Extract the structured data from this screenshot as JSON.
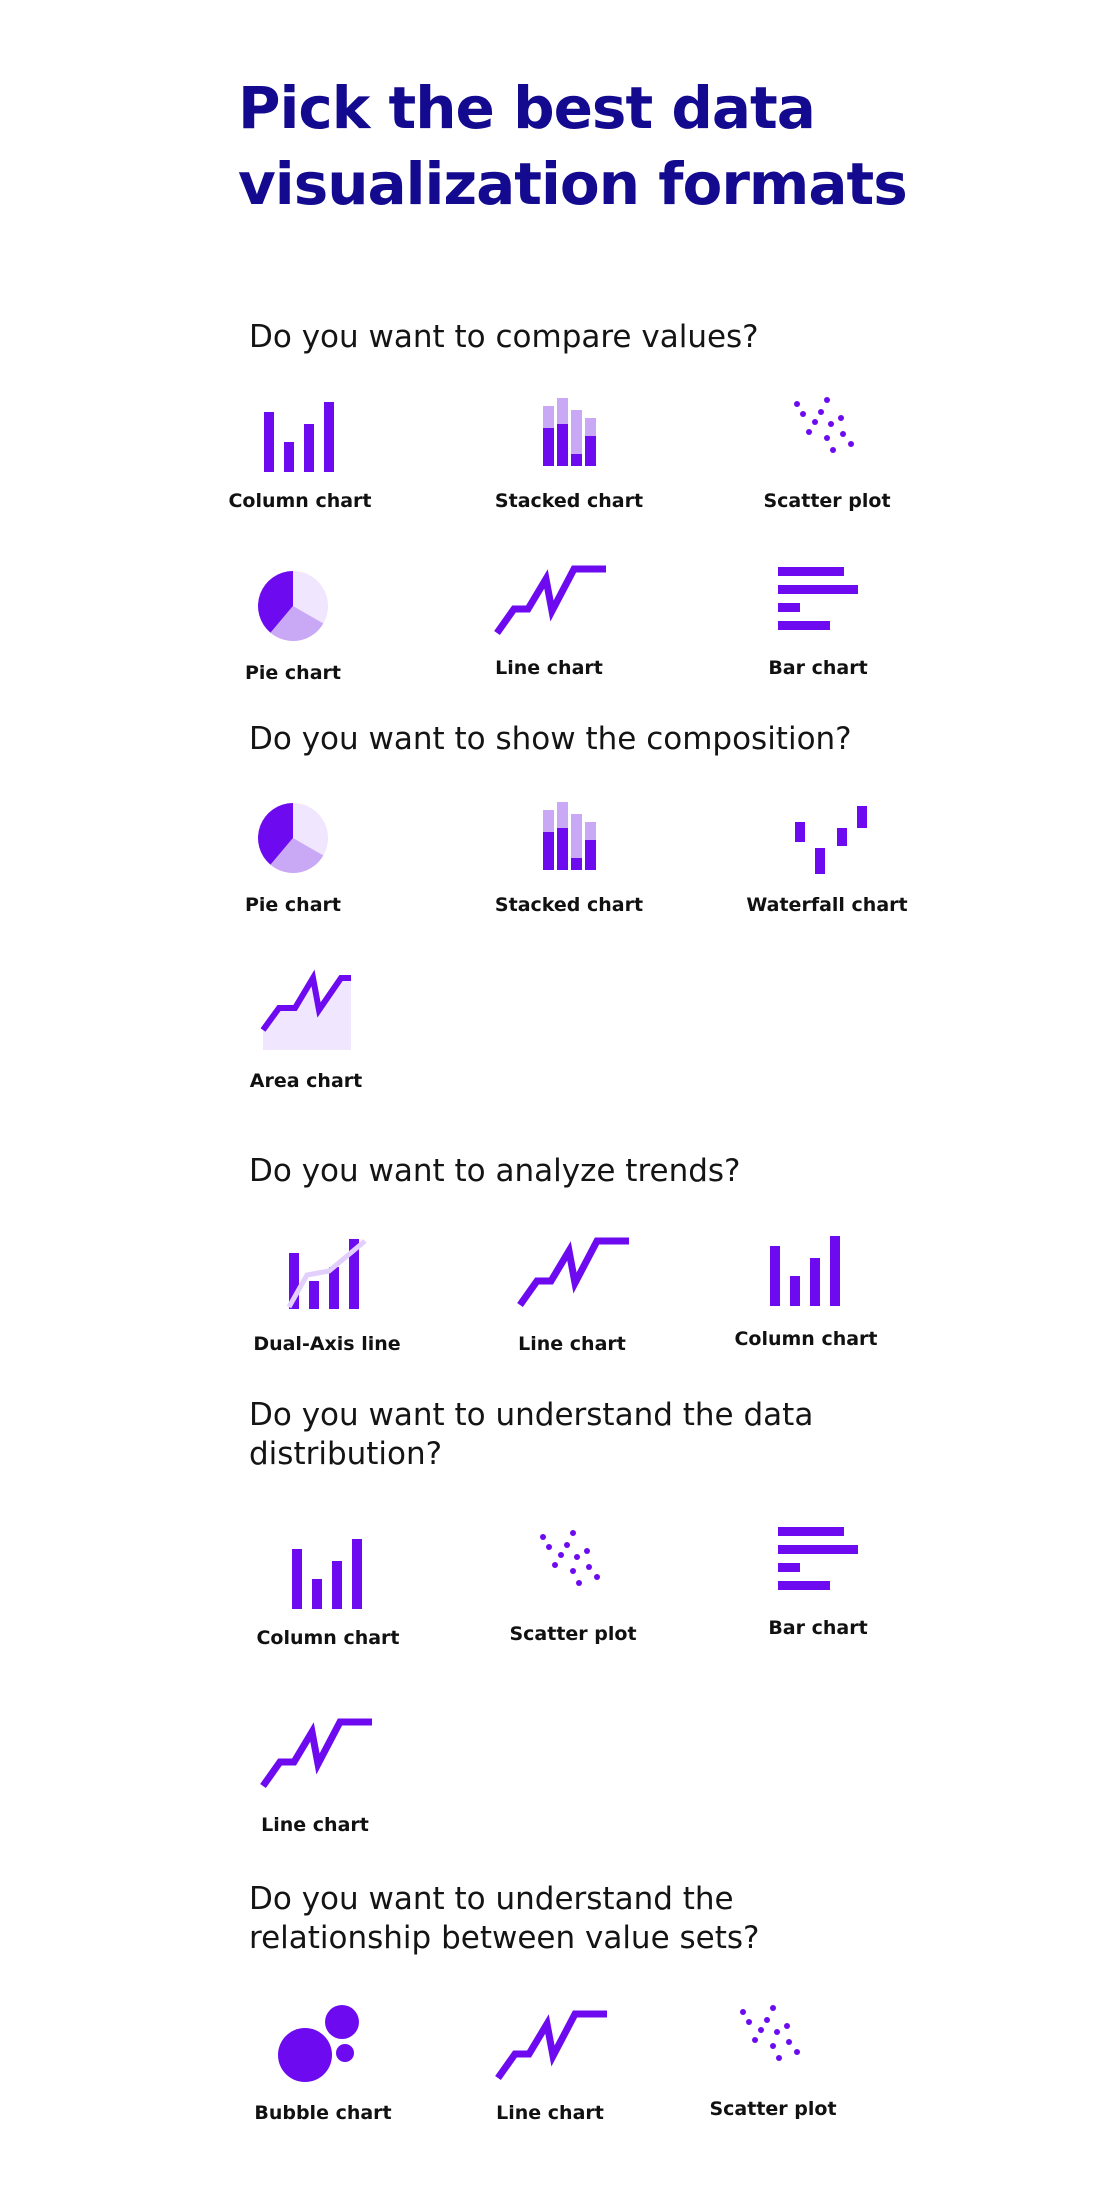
{
  "title_line1": "Pick the best data",
  "title_line2": "visualization formats",
  "colors": {
    "title": "#130a8f",
    "primary": "#6d0af0",
    "light": "#c9a8f5",
    "pale": "#f0e6fd"
  },
  "sections": [
    {
      "question": "Do you want to compare values?",
      "items": [
        "Column chart",
        "Stacked chart",
        "Scatter plot",
        "Pie chart",
        "Line chart",
        "Bar chart"
      ]
    },
    {
      "question": "Do you want to show the composition?",
      "items": [
        "Pie chart",
        "Stacked chart",
        "Waterfall chart",
        "Area chart"
      ]
    },
    {
      "question": "Do you want to analyze trends?",
      "items": [
        "Dual-Axis line",
        "Line chart",
        "Column chart"
      ]
    },
    {
      "question_line1": "Do you want to understand the data",
      "question_line2": "distribution?",
      "items": [
        "Column chart",
        "Scatter plot",
        "Bar chart",
        "Line chart"
      ]
    },
    {
      "question_line1": "Do you want to understand the",
      "question_line2": "relationship between value sets?",
      "items": [
        "Bubble chart",
        "Line chart",
        "Scatter plot"
      ]
    }
  ],
  "icons": {
    "column": "column-chart-icon",
    "stacked": "stacked-chart-icon",
    "scatter": "scatter-plot-icon",
    "pie": "pie-chart-icon",
    "line": "line-chart-icon",
    "bar": "bar-chart-icon",
    "waterfall": "waterfall-chart-icon",
    "area": "area-chart-icon",
    "dual": "dual-axis-line-icon",
    "bubble": "bubble-chart-icon"
  }
}
